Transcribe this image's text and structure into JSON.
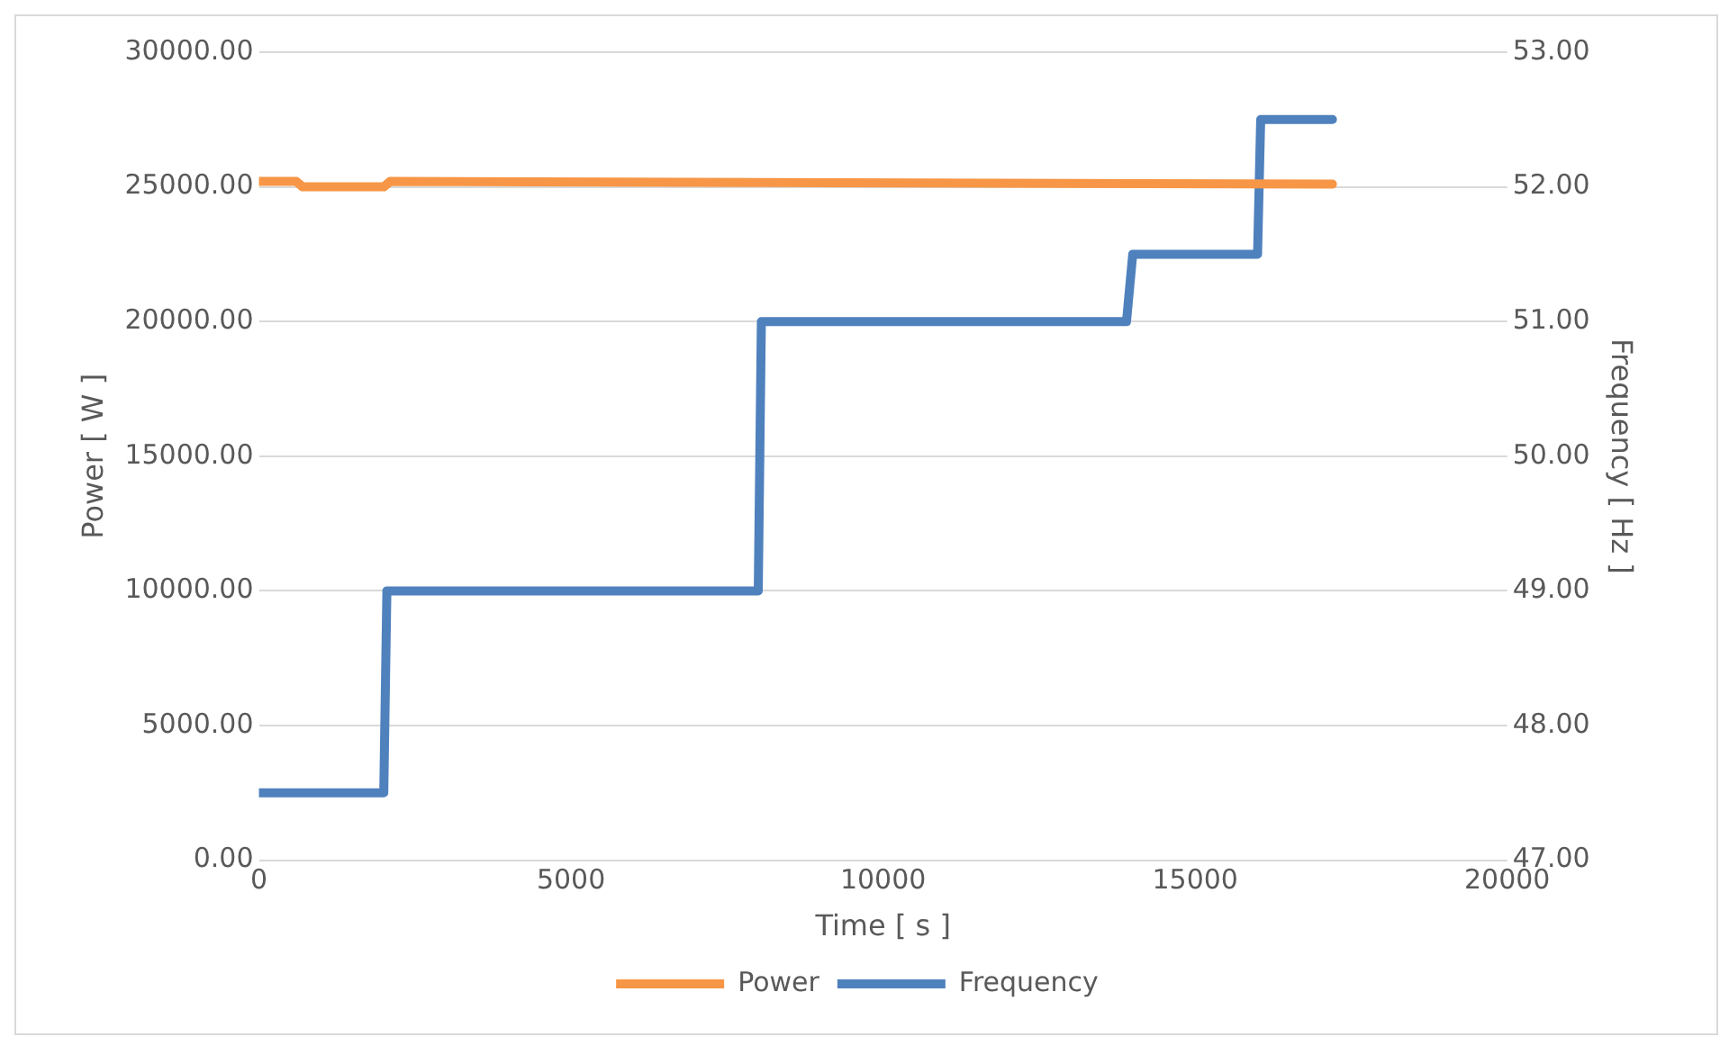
{
  "chart_data": {
    "type": "line",
    "xlabel": "Time [ s ]",
    "ylabel": "Power [ W ]",
    "y2label": "Frequency [ Hz ]",
    "xlim": [
      0,
      20000
    ],
    "xticks": [
      0,
      5000,
      10000,
      15000,
      20000
    ],
    "ylim": [
      0,
      30000
    ],
    "yticks": [
      {
        "value": 0,
        "label": "0.00"
      },
      {
        "value": 5000,
        "label": "5000.00"
      },
      {
        "value": 10000,
        "label": "10000.00"
      },
      {
        "value": 15000,
        "label": "15000.00"
      },
      {
        "value": 20000,
        "label": "20000.00"
      },
      {
        "value": 25000,
        "label": "25000.00"
      },
      {
        "value": 30000,
        "label": "30000.00"
      }
    ],
    "y2lim": [
      47,
      53
    ],
    "y2ticks": [
      {
        "value": 47,
        "label": "47.00"
      },
      {
        "value": 48,
        "label": "48.00"
      },
      {
        "value": 49,
        "label": "49.00"
      },
      {
        "value": 50,
        "label": "50.00"
      },
      {
        "value": 51,
        "label": "51.00"
      },
      {
        "value": 52,
        "label": "52.00"
      },
      {
        "value": 53,
        "label": "53.00"
      }
    ],
    "grid": "y",
    "legend": "bottom",
    "marker": "none",
    "line_style": "solid",
    "series": [
      {
        "name": "Power",
        "color": "#f79646",
        "x": [
          0,
          600,
          700,
          2000,
          2100,
          17200
        ],
        "values": [
          25200,
          25200,
          25000,
          25000,
          25200,
          25100
        ]
      },
      {
        "name": "Frequency",
        "color": "#4f81bd",
        "axis": "y2",
        "x": [
          0,
          2000,
          2050,
          8000,
          8050,
          13900,
          14000,
          16000,
          16050,
          17200
        ],
        "values": [
          47.5,
          47.5,
          49,
          49,
          51,
          51,
          51.5,
          51.5,
          52.5,
          52.5
        ]
      }
    ]
  }
}
